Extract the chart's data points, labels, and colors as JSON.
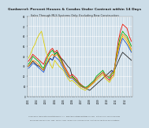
{
  "title": "Gunbarrel: Percent Houses & Condos Under Contract within 14 Days",
  "subtitle": "Sales Through MLS Systems Only: Excluding New Construction",
  "footer1": "Compiled by Appreciate Real Estate Buyers, LLC   www.AppreciateRealEstateBuyers.com   Data Sources: 2022 REColorado",
  "footer2": "Phone from 303-442-4014  3185  13354  13241  B-0341-470  2nd-0023-1970  sq ft  Buyers rights are non-negotiable",
  "bg_color": "#ccdde8",
  "grid_color": "#ffffff",
  "xlabels": [
    "2001",
    "",
    "",
    "",
    "2002",
    "",
    "",
    "",
    "2003",
    "",
    "",
    "",
    "2004",
    "",
    "",
    "",
    "2005",
    "",
    "",
    "",
    "2006",
    "",
    "",
    "",
    "2007",
    "",
    "",
    "",
    "2008",
    "",
    "",
    "",
    "2009",
    "",
    "",
    "",
    "2010",
    "",
    "",
    "",
    "2011",
    "",
    "",
    "",
    "2012",
    "",
    "",
    "",
    "2013",
    "",
    "",
    ""
  ],
  "series": {
    "black": [
      30,
      32,
      35,
      33,
      31,
      30,
      28,
      26,
      32,
      35,
      38,
      36,
      42,
      44,
      40,
      38,
      36,
      33,
      30,
      28,
      20,
      18,
      15,
      12,
      10,
      9,
      8,
      7,
      6,
      8,
      10,
      12,
      14,
      16,
      18,
      20,
      22,
      24,
      26,
      24,
      30,
      35,
      40,
      44,
      42,
      40,
      38,
      36
    ],
    "red": [
      35,
      38,
      42,
      40,
      38,
      36,
      34,
      32,
      38,
      42,
      46,
      48,
      44,
      46,
      42,
      38,
      32,
      28,
      24,
      20,
      22,
      20,
      18,
      14,
      12,
      10,
      8,
      9,
      10,
      12,
      14,
      18,
      20,
      22,
      24,
      20,
      18,
      16,
      20,
      22,
      40,
      55,
      65,
      72,
      70,
      68,
      60,
      55
    ],
    "green": [
      32,
      35,
      40,
      38,
      36,
      34,
      30,
      28,
      35,
      40,
      44,
      46,
      42,
      44,
      40,
      36,
      30,
      26,
      22,
      18,
      20,
      18,
      16,
      13,
      11,
      10,
      9,
      10,
      12,
      14,
      16,
      20,
      22,
      24,
      26,
      22,
      20,
      18,
      22,
      24,
      38,
      50,
      60,
      65,
      62,
      60,
      55,
      50
    ],
    "yellow": [
      38,
      42,
      48,
      52,
      58,
      62,
      65,
      55,
      45,
      38,
      32,
      28,
      36,
      33,
      30,
      28,
      26,
      22,
      18,
      15,
      16,
      14,
      12,
      10,
      8,
      7,
      6,
      8,
      10,
      12,
      14,
      16,
      18,
      20,
      22,
      18,
      16,
      14,
      18,
      20,
      36,
      48,
      56,
      60,
      58,
      55,
      50,
      45
    ],
    "blue": [
      28,
      30,
      33,
      32,
      30,
      28,
      26,
      24,
      30,
      34,
      38,
      36,
      40,
      38,
      36,
      32,
      28,
      24,
      20,
      18,
      18,
      16,
      14,
      12,
      10,
      9,
      8,
      9,
      11,
      13,
      15,
      18,
      20,
      22,
      24,
      22,
      20,
      20,
      24,
      26,
      35,
      42,
      52,
      58,
      55,
      52,
      48,
      44
    ],
    "orange": [
      30,
      33,
      36,
      35,
      33,
      31,
      28,
      26,
      32,
      36,
      40,
      42,
      40,
      42,
      38,
      34,
      30,
      26,
      22,
      18,
      19,
      17,
      15,
      12,
      10,
      9,
      8,
      9,
      11,
      13,
      15,
      18,
      20,
      22,
      24,
      22,
      20,
      20,
      23,
      25,
      36,
      46,
      55,
      62,
      60,
      58,
      52,
      47
    ]
  },
  "colors": {
    "black": "#222222",
    "red": "#ee1100",
    "green": "#00aa00",
    "yellow": "#ddcc00",
    "blue": "#2255cc",
    "orange": "#ff8800"
  },
  "ylim": [
    0,
    80
  ],
  "ytick_vals": [
    0,
    10,
    20,
    30,
    40,
    50,
    60,
    70,
    80
  ],
  "line_width": 0.6,
  "title_fontsize": 3.2,
  "subtitle_fontsize": 2.5,
  "tick_fontsize": 1.9,
  "footer_fontsize": 1.4
}
